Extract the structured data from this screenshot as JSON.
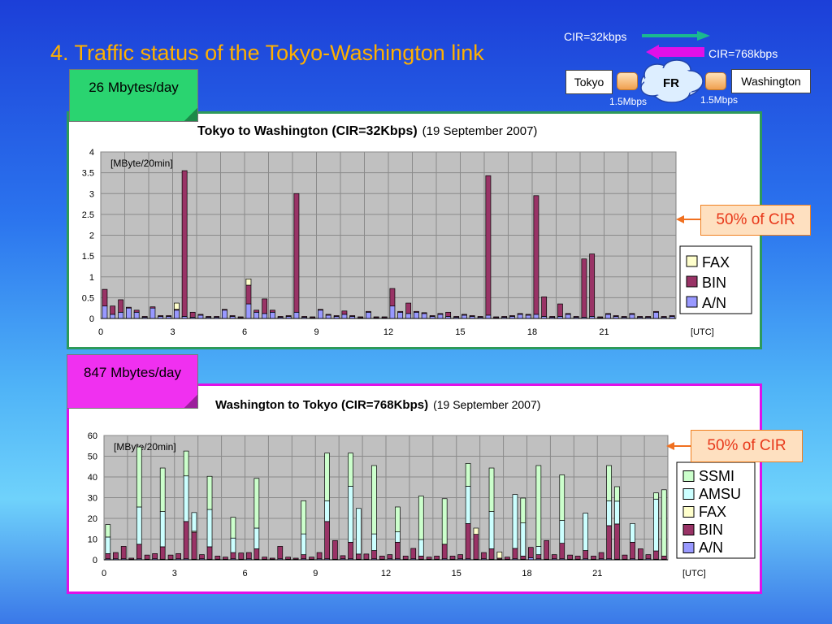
{
  "slide": {
    "title": "4.  Traffic status of the Tokyo-Washington link"
  },
  "network": {
    "cir_up": "CIR=32kbps",
    "cir_down": "CIR=768kbps",
    "left_node": "Tokyo",
    "right_node": "Washington",
    "cloud": "FR",
    "left_speed": "1.5Mbps",
    "right_speed": "1.5Mbps",
    "up_arrow_color": "#1ab890",
    "down_arrow_color": "#e010e8"
  },
  "panels": {
    "top": {
      "volume": "26 Mbytes/day",
      "cir_note": "50% of CIR",
      "border_color": "#2e9a5a",
      "note_color": "#2ad470"
    },
    "bottom": {
      "volume": "847 Mbytes/day",
      "cir_note": "50% of CIR",
      "border_color": "#e010e8",
      "note_color": "#f030f0"
    }
  },
  "chart_data": [
    {
      "type": "bar",
      "stacked": true,
      "title": "Tokyo to Washington (CIR=32Kbps)",
      "subtitle": "(19 September 2007)",
      "unit_label": "[MByte/20min]",
      "xaxis_label": "[UTC]",
      "ylim": [
        0,
        4
      ],
      "yticks": [
        "0",
        "0.5",
        "1",
        "1.5",
        "2",
        "2.5",
        "3",
        "3.5",
        "4"
      ],
      "xticks": [
        "0",
        "3",
        "6",
        "9",
        "12",
        "15",
        "18",
        "21"
      ],
      "x": [
        0,
        0.33,
        0.67,
        1,
        1.33,
        1.67,
        2,
        2.33,
        2.67,
        3,
        3.33,
        3.67,
        4,
        4.33,
        4.67,
        5,
        5.33,
        5.67,
        6,
        6.33,
        6.67,
        7,
        7.33,
        7.67,
        8,
        8.33,
        8.67,
        9,
        9.33,
        9.67,
        10,
        10.33,
        10.67,
        11,
        11.33,
        11.67,
        12,
        12.33,
        12.67,
        13,
        13.33,
        13.67,
        14,
        14.33,
        14.67,
        15,
        15.33,
        15.67,
        16,
        16.33,
        16.67,
        17,
        17.33,
        17.67,
        18,
        18.33,
        18.67,
        19,
        19.33,
        19.67,
        20,
        20.33,
        20.67,
        21,
        21.33,
        21.67,
        22,
        22.33,
        22.67,
        23,
        23.33,
        23.67
      ],
      "series": [
        {
          "name": "A/N",
          "color": "#9999ff",
          "values": [
            0.3,
            0.1,
            0.15,
            0.25,
            0.15,
            0.03,
            0.25,
            0.05,
            0.05,
            0.2,
            0.05,
            0.03,
            0.08,
            0.03,
            0.03,
            0.2,
            0.05,
            0.02,
            0.35,
            0.15,
            0.12,
            0.15,
            0.03,
            0.05,
            0.15,
            0.03,
            0.02,
            0.2,
            0.08,
            0.05,
            0.1,
            0.05,
            0.02,
            0.15,
            0.02,
            0.02,
            0.3,
            0.15,
            0.12,
            0.15,
            0.12,
            0.05,
            0.1,
            0.05,
            0.03,
            0.08,
            0.05,
            0.03,
            0.08,
            0.02,
            0.03,
            0.05,
            0.1,
            0.08,
            0.1,
            0.05,
            0.03,
            0.05,
            0.1,
            0.03,
            0.03,
            0.05,
            0.02,
            0.1,
            0.05,
            0.03,
            0.1,
            0.03,
            0.03,
            0.15,
            0.03,
            0.05
          ]
        },
        {
          "name": "BIN",
          "color": "#993366",
          "values": [
            0.4,
            0.2,
            0.3,
            0.02,
            0.05,
            0.02,
            0.03,
            0.02,
            0.02,
            0.02,
            3.5,
            0.12,
            0.02,
            0.02,
            0.02,
            0.02,
            0.02,
            0.02,
            0.45,
            0.05,
            0.35,
            0.05,
            0.02,
            0.02,
            2.85,
            0.02,
            0.02,
            0.02,
            0.02,
            0.02,
            0.08,
            0.02,
            0.02,
            0.02,
            0.02,
            0.02,
            0.42,
            0.02,
            0.25,
            0.02,
            0.02,
            0.02,
            0.02,
            0.1,
            0.02,
            0.02,
            0.02,
            0.02,
            3.35,
            0.02,
            0.02,
            0.02,
            0.02,
            0.02,
            2.85,
            0.47,
            0.02,
            0.3,
            0.02,
            0.02,
            1.4,
            1.5,
            0.02,
            0.02,
            0.02,
            0.02,
            0.02,
            0.02,
            0.02,
            0.02,
            0.02,
            0.02
          ]
        },
        {
          "name": "FAX",
          "color": "#ffffcc",
          "values": [
            0,
            0,
            0,
            0,
            0,
            0,
            0,
            0,
            0,
            0.15,
            0,
            0,
            0,
            0,
            0,
            0,
            0,
            0,
            0.15,
            0,
            0,
            0,
            0,
            0,
            0,
            0,
            0,
            0,
            0,
            0,
            0,
            0,
            0,
            0,
            0,
            0,
            0,
            0,
            0,
            0,
            0,
            0,
            0,
            0,
            0,
            0,
            0,
            0,
            0,
            0,
            0,
            0,
            0,
            0,
            0,
            0,
            0,
            0,
            0,
            0,
            0,
            0,
            0,
            0,
            0,
            0,
            0,
            0,
            0,
            0,
            0,
            0
          ]
        }
      ],
      "legend": [
        "FAX",
        "BIN",
        "A/N"
      ]
    },
    {
      "type": "bar",
      "stacked": true,
      "title": "Washington to Tokyo (CIR=768Kbps)",
      "subtitle": "(19 September 2007)",
      "unit_label": "[MByte/20min]",
      "xaxis_label": "[UTC]",
      "ylim": [
        0,
        60
      ],
      "yticks": [
        "0",
        "10",
        "20",
        "30",
        "40",
        "50",
        "60"
      ],
      "xticks": [
        "0",
        "3",
        "6",
        "9",
        "12",
        "15",
        "18",
        "21"
      ],
      "x": [
        0,
        0.33,
        0.67,
        1,
        1.33,
        1.67,
        2,
        2.33,
        2.67,
        3,
        3.33,
        3.67,
        4,
        4.33,
        4.67,
        5,
        5.33,
        5.67,
        6,
        6.33,
        6.67,
        7,
        7.33,
        7.67,
        8,
        8.33,
        8.67,
        9,
        9.33,
        9.67,
        10,
        10.33,
        10.67,
        11,
        11.33,
        11.67,
        12,
        12.33,
        12.67,
        13,
        13.33,
        13.67,
        14,
        14.33,
        14.67,
        15,
        15.33,
        15.67,
        16,
        16.33,
        16.67,
        17,
        17.33,
        17.67,
        18,
        18.33,
        18.67,
        19,
        19.33,
        19.67,
        20,
        20.33,
        20.67,
        21,
        21.33,
        21.67,
        22,
        22.33,
        22.67,
        23,
        23.33,
        23.67
      ],
      "series": [
        {
          "name": "A/N",
          "color": "#9999ff",
          "values": [
            0.5,
            0.5,
            0.5,
            0.3,
            0.5,
            0.3,
            0.5,
            0.3,
            0.3,
            0.5,
            0.5,
            0.3,
            0.5,
            0.3,
            0.3,
            0.3,
            0.5,
            0.3,
            0.5,
            0.3,
            0.3,
            0.3,
            0.5,
            0.3,
            0.3,
            0.5,
            0.3,
            0.5,
            0.5,
            0.3,
            0.5,
            0.5,
            0.3,
            0.3,
            0.5,
            0.3,
            0.5,
            0.5,
            0.3,
            0.5,
            0.3,
            0.3,
            0.3,
            0.5,
            0.3,
            0.5,
            0.5,
            0.3,
            0.5,
            0.3,
            0.3,
            0.3,
            0.5,
            0.3,
            1,
            0.5,
            0.3,
            0.5,
            0.5,
            0.3,
            0.3,
            0.5,
            0.3,
            0.5,
            0.5,
            0.3,
            0.3,
            0.5,
            0.3,
            0.5,
            0.3,
            0.3
          ]
        },
        {
          "name": "BIN",
          "color": "#993366",
          "values": [
            2.5,
            3,
            6,
            0.5,
            7,
            2,
            2.5,
            6,
            2,
            2.5,
            18,
            13,
            2,
            6,
            1.5,
            1,
            3,
            3,
            3,
            5,
            1,
            0.5,
            6,
            1,
            0.5,
            2,
            1,
            3,
            18,
            9,
            1.5,
            8,
            2.5,
            2.5,
            4,
            1.5,
            2,
            8,
            1.5,
            5,
            1.5,
            1,
            1.5,
            7,
            1.5,
            2,
            17,
            12,
            3,
            5,
            0.5,
            1,
            5,
            1.5,
            5,
            2,
            9,
            2,
            7.5,
            2,
            1.5,
            4,
            1.5,
            3,
            16,
            17,
            2,
            8,
            5,
            2,
            4,
            1.5
          ]
        },
        {
          "name": "FAX",
          "color": "#ffffcc",
          "values": [
            0,
            0,
            0,
            0,
            0,
            0,
            0,
            0,
            0,
            0,
            0,
            0.5,
            0,
            0,
            0,
            0,
            0,
            0,
            0,
            0,
            0,
            0,
            0,
            0,
            0,
            0,
            0,
            0,
            0,
            0,
            0,
            0,
            0,
            0,
            0,
            0,
            0,
            0,
            0,
            0,
            0,
            0,
            0,
            0,
            0,
            0,
            0,
            3,
            0,
            0,
            3,
            0,
            0,
            0,
            0,
            0,
            0,
            0,
            0,
            0,
            0,
            0,
            0,
            0,
            0,
            0,
            0,
            0,
            0,
            0,
            0,
            0
          ]
        },
        {
          "name": "AMSU",
          "color": "#ccffff",
          "values": [
            8,
            0,
            0,
            0,
            18,
            0,
            0,
            17,
            0,
            0,
            22,
            9,
            0,
            18,
            0,
            0,
            7,
            0,
            0,
            10,
            0,
            0,
            0,
            0,
            0,
            10,
            0,
            0,
            10,
            0,
            0,
            27,
            22,
            0,
            8,
            0,
            0,
            5,
            0,
            0,
            8,
            0,
            0,
            0,
            0,
            0,
            18,
            0,
            0,
            18,
            0,
            0,
            26,
            16,
            0,
            4,
            0,
            0,
            11,
            0,
            0,
            18,
            0,
            0,
            12,
            11,
            0,
            9,
            0,
            0,
            25,
            0
          ]
        },
        {
          "name": "SSMI",
          "color": "#ccffcc",
          "values": [
            6,
            0,
            0,
            0,
            29,
            0,
            0,
            21,
            0,
            0,
            12,
            0,
            0,
            16,
            0,
            0,
            10,
            0,
            0,
            24,
            0,
            0,
            0,
            0,
            0,
            16,
            0,
            0,
            23,
            0,
            0,
            16,
            0,
            0,
            33,
            0,
            0,
            12,
            0,
            0,
            21,
            0,
            0,
            22,
            0,
            0,
            11,
            0,
            0,
            21,
            0,
            0,
            0,
            12,
            0,
            39,
            0,
            0,
            22,
            0,
            0,
            0,
            0,
            0,
            17,
            7,
            0,
            0,
            0,
            0,
            3,
            32
          ]
        }
      ],
      "legend": [
        "SSMI",
        "AMSU",
        "FAX",
        "BIN",
        "A/N"
      ]
    }
  ]
}
